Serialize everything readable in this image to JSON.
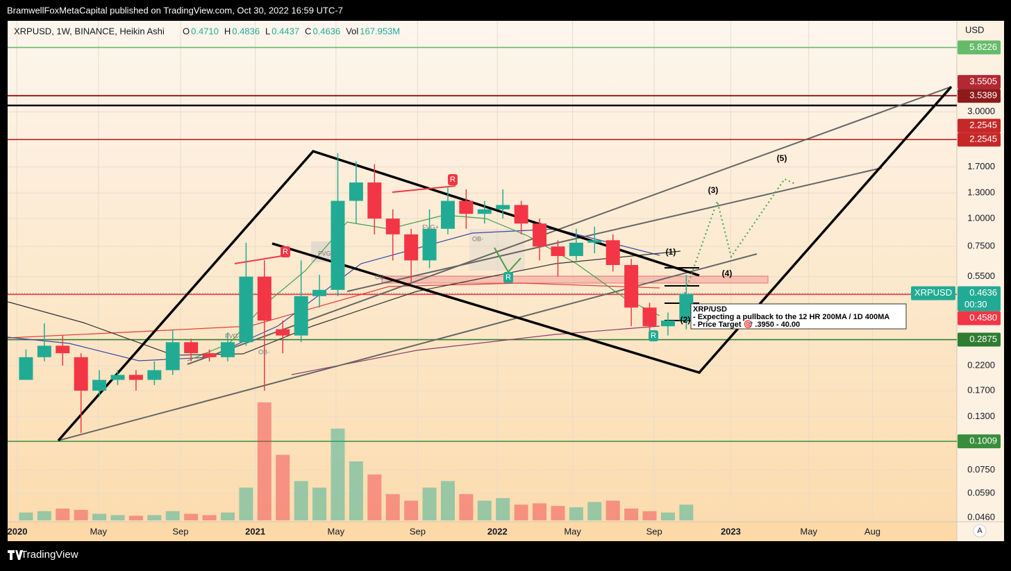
{
  "header": {
    "publisher": "BramwellFoxMetaCapital published on TradingView.com, Oct 30, 2022 16:59 UTC-7",
    "brand": "TradingView",
    "auto_button": "A"
  },
  "chart_data": {
    "type": "candlestick",
    "symbol": "XRPUSD, 1W, BINANCE, Heikin Ashi",
    "ohlc": [
      {
        "key": "O",
        "value": "0.4710"
      },
      {
        "key": "H",
        "value": "0.4836"
      },
      {
        "key": "L",
        "value": "0.4437"
      },
      {
        "key": "C",
        "value": "0.4636"
      },
      {
        "key": "Vol",
        "value": "167.953M"
      }
    ],
    "y_axis_label": "USD",
    "log_scale": true,
    "grid": true,
    "up_color": "#22ab94",
    "down_color": "#f23645",
    "x": [
      3,
      7,
      11,
      15,
      19,
      23,
      27,
      31,
      35,
      39,
      43,
      47,
      51,
      55,
      59,
      63,
      67,
      71,
      75,
      79,
      83,
      87,
      91,
      95,
      99,
      103,
      107,
      111,
      115,
      119,
      123,
      127,
      131,
      135,
      139,
      143,
      147
    ],
    "open": [
      0.19,
      0.24,
      0.27,
      0.24,
      0.17,
      0.19,
      0.2,
      0.19,
      0.21,
      0.28,
      0.25,
      0.24,
      0.28,
      0.55,
      0.32,
      0.3,
      0.45,
      0.48,
      1.2,
      1.45,
      1.0,
      0.85,
      0.65,
      0.9,
      1.2,
      1.05,
      1.1,
      1.15,
      0.95,
      0.75,
      0.68,
      0.78,
      0.8,
      0.62,
      0.4,
      0.33,
      0.35
    ],
    "high": [
      0.26,
      0.34,
      0.3,
      0.25,
      0.21,
      0.21,
      0.21,
      0.23,
      0.32,
      0.29,
      0.26,
      0.31,
      0.78,
      0.65,
      0.35,
      0.65,
      0.56,
      1.96,
      1.8,
      1.75,
      1.1,
      0.9,
      1.1,
      1.4,
      1.35,
      1.2,
      1.35,
      1.2,
      1.0,
      0.8,
      0.9,
      0.92,
      0.85,
      0.66,
      0.42,
      0.38,
      0.56
    ],
    "low": [
      0.19,
      0.23,
      0.22,
      0.11,
      0.16,
      0.18,
      0.17,
      0.18,
      0.2,
      0.23,
      0.23,
      0.23,
      0.27,
      0.17,
      0.25,
      0.28,
      0.4,
      0.45,
      0.95,
      0.85,
      0.65,
      0.52,
      0.6,
      0.85,
      0.9,
      0.95,
      1.0,
      0.85,
      0.65,
      0.55,
      0.65,
      0.7,
      0.58,
      0.33,
      0.29,
      0.3,
      0.32
    ],
    "close": [
      0.24,
      0.27,
      0.25,
      0.17,
      0.19,
      0.2,
      0.19,
      0.21,
      0.28,
      0.25,
      0.24,
      0.28,
      0.55,
      0.35,
      0.3,
      0.45,
      0.48,
      1.2,
      1.45,
      1.0,
      0.85,
      0.65,
      0.9,
      1.2,
      1.05,
      1.1,
      1.15,
      0.95,
      0.75,
      0.68,
      0.78,
      0.8,
      0.62,
      0.4,
      0.33,
      0.35,
      0.46
    ],
    "volume": [
      60,
      70,
      90,
      80,
      50,
      40,
      35,
      40,
      70,
      50,
      40,
      60,
      250,
      900,
      500,
      300,
      250,
      700,
      450,
      350,
      200,
      150,
      250,
      300,
      200,
      150,
      170,
      120,
      130,
      110,
      100,
      140,
      150,
      90,
      70,
      60,
      120
    ],
    "xlim": [
      -1,
      206
    ],
    "ylim": [
      0.0441,
      7.66
    ],
    "xticks": [
      {
        "value": 1,
        "label": "2020"
      },
      {
        "value": 18.8,
        "label": "May"
      },
      {
        "value": 36.7,
        "label": "Sep"
      },
      {
        "value": 53,
        "label": "2021"
      },
      {
        "value": 70.6,
        "label": "May"
      },
      {
        "value": 88.4,
        "label": "Sep"
      },
      {
        "value": 105.8,
        "label": "2022"
      },
      {
        "value": 122.2,
        "label": "May"
      },
      {
        "value": 140,
        "label": "Sep"
      },
      {
        "value": 156.7,
        "label": "2023"
      },
      {
        "value": 173.7,
        "label": "May"
      },
      {
        "value": 187.6,
        "label": "Aug"
      }
    ],
    "yticks": [
      {
        "value": 3,
        "label": "3.0000"
      },
      {
        "value": 1.7,
        "label": "1.7000"
      },
      {
        "value": 1.3,
        "label": "1.3000"
      },
      {
        "value": 1,
        "label": "1.0000"
      },
      {
        "value": 0.75,
        "label": "0.7500"
      },
      {
        "value": 0.55,
        "label": "0.5500"
      },
      {
        "value": 0.22,
        "label": "0.2200"
      },
      {
        "value": 0.17,
        "label": "0.1700"
      },
      {
        "value": 0.13,
        "label": "0.1300"
      },
      {
        "value": 0.075,
        "label": "0.0750"
      },
      {
        "value": 0.059,
        "label": "0.0590"
      },
      {
        "value": 0.046,
        "label": "0.0460"
      }
    ],
    "price_tags": [
      {
        "value": 5.8226,
        "label": "5.8226",
        "color": "#66bb6a"
      },
      {
        "value": 3.5505,
        "label": "3.5505",
        "color": "#b22833"
      },
      {
        "value": 3.5389,
        "label": "3.5389",
        "color": "#8e1b1b"
      },
      {
        "value": 2.2545,
        "label": "2.2545",
        "color": "#c62828"
      },
      {
        "value": 2.2545,
        "label": "2.2545",
        "color": "#c62828"
      },
      {
        "value": 0.4636,
        "label": "0.4636",
        "color": "#22ab94",
        "symbol": "XRPUSD",
        "countdown": "00:30"
      },
      {
        "value": 0.458,
        "label": "0.4580",
        "color": "#f23645"
      },
      {
        "value": 0.2875,
        "label": "0.2875",
        "color": "#2e7d32"
      },
      {
        "value": 0.1009,
        "label": "0.1009",
        "color": "#388e3c"
      }
    ],
    "wave_labels": [
      "(1)",
      "(2)",
      "(3)",
      "(4)",
      "(5)"
    ],
    "markers": [
      "R",
      "R",
      "R",
      "R"
    ],
    "zone_labels": [
      "FVG+",
      "FVG+",
      "FVG+",
      "OB-",
      "OB-",
      "OB-"
    ],
    "note": [
      "XRP/USD",
      "- Expecting a pullback to the 12 HR 200MA / 1D 400MA",
      "- Price Target 🎯 .3950 - 40.00"
    ]
  }
}
